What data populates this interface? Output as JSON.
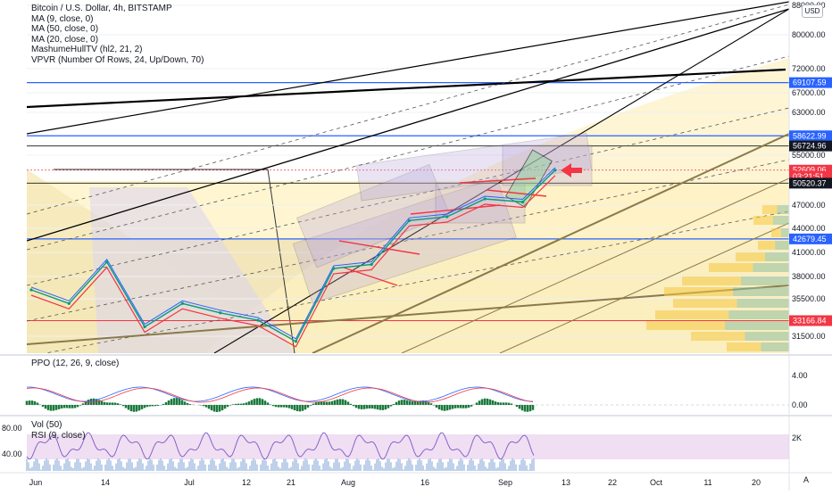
{
  "chart_data": {
    "type": "line",
    "title": "Bitcoin / U.S. Dollar, 4h, BITSTAMP",
    "legend": [
      "Bitcoin / U.S. Dollar, 4h, BITSTAMP",
      "MA (9, close, 0)",
      "MA (50, close, 0)",
      "MA (20, close, 0)",
      "MashumeHullTV (hl2, 21, 2)",
      "VPVR (Number Of Rows, 24, Up/Down, 70)"
    ],
    "currency_button": "USD",
    "y_ticks": [
      "88000.00",
      "80000.00",
      "72000.00",
      "67000.00",
      "63000.00",
      "55000.00",
      "47000.00",
      "44000.00",
      "41000.00",
      "38000.00",
      "35500.00",
      "31500.00"
    ],
    "y_tick_values": [
      88000,
      80000,
      72000,
      67000,
      63000,
      55000,
      47000,
      44000,
      41000,
      38000,
      35500,
      31500
    ],
    "ylim": [
      29500,
      90000
    ],
    "price_labels": [
      {
        "text": "69107.59",
        "value": 69107.59,
        "color": "#2962ff"
      },
      {
        "text": "58622.99",
        "value": 58622.99,
        "color": "#2962ff"
      },
      {
        "text": "56724.96",
        "value": 56724.96,
        "color": "#131722"
      },
      {
        "text": "52609.06",
        "value": 52609.06,
        "color": "#f23645"
      },
      {
        "text": "03:21:51",
        "value": 51600,
        "color": "#f23645"
      },
      {
        "text": "50520.37",
        "value": 50520.37,
        "color": "#131722"
      },
      {
        "text": "42679.45",
        "value": 42679.45,
        "color": "#2962ff"
      },
      {
        "text": "33166.84",
        "value": 33166.84,
        "color": "#f23645"
      }
    ],
    "x_ticks": [
      "Jun",
      "14",
      "Jul",
      "12",
      "21",
      "Aug",
      "16",
      "Sep",
      "13",
      "22",
      "Oct",
      "11",
      "20"
    ],
    "series": [
      {
        "name": "Bitcoin / U.S. Dollar",
        "dates": [
          "2021-06-01",
          "2021-06-08",
          "2021-06-15",
          "2021-06-22",
          "2021-06-29",
          "2021-07-06",
          "2021-07-13",
          "2021-07-20",
          "2021-07-27",
          "2021-08-03",
          "2021-08-10",
          "2021-08-17",
          "2021-08-24",
          "2021-08-31",
          "2021-09-06"
        ],
        "values": [
          36500,
          35000,
          39800,
          32500,
          35000,
          34000,
          33200,
          31000,
          39000,
          39500,
          45000,
          45500,
          48000,
          47500,
          52600
        ]
      }
    ],
    "ppo": {
      "label": "PPO (12, 26, 9, close)",
      "y_ticks": [
        "4.00",
        "0.00"
      ]
    },
    "vol_rsi": {
      "labels": [
        "Vol (50)",
        "RSI (9, close)"
      ],
      "y_ticks_left": [
        "80.00",
        "40.00"
      ],
      "y_tick_right": "2K"
    },
    "auto_label": "A",
    "grid": true
  }
}
